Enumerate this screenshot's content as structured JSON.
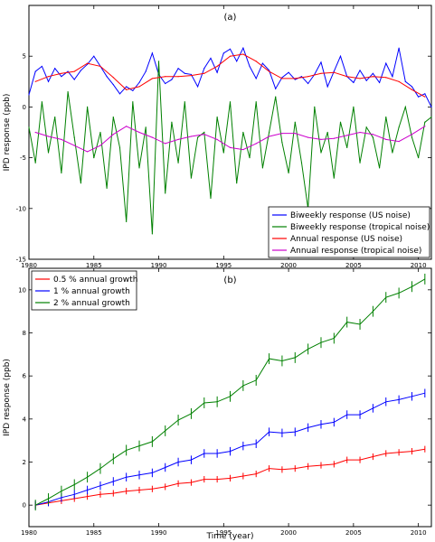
{
  "chart_data": [
    {
      "type": "line",
      "panel_label": "(a)",
      "xlabel": "",
      "ylabel": "IPD response (ppb)",
      "xlim": [
        1980,
        2011
      ],
      "ylim": [
        -15,
        10
      ],
      "x_ticks": [
        1980,
        1985,
        1990,
        1995,
        2000,
        2005,
        2010
      ],
      "y_ticks": [
        -15,
        -10,
        -5,
        0,
        5
      ],
      "grid": false,
      "legend_position": "bottom-right",
      "series": [
        {
          "name": "Biweekly response (US noise)",
          "color": "#0000ff",
          "x": [
            1980,
            1980.5,
            1981,
            1981.5,
            1982,
            1982.5,
            1983,
            1983.5,
            1984,
            1984.5,
            1985,
            1985.5,
            1986,
            1986.5,
            1987,
            1987.5,
            1988,
            1988.5,
            1989,
            1989.5,
            1990,
            1990.5,
            1991,
            1991.5,
            1992,
            1992.5,
            1993,
            1993.5,
            1994,
            1994.5,
            1995,
            1995.5,
            1996,
            1996.5,
            1997,
            1997.5,
            1998,
            1998.5,
            1999,
            1999.5,
            2000,
            2000.5,
            2001,
            2001.5,
            2002,
            2002.5,
            2003,
            2003.5,
            2004,
            2004.5,
            2005,
            2005.5,
            2006,
            2006.5,
            2007,
            2007.5,
            2008,
            2008.5,
            2009,
            2009.5,
            2010,
            2010.5,
            2011
          ],
          "y": [
            1.2,
            3.5,
            4.0,
            2.5,
            3.8,
            3.0,
            3.5,
            2.7,
            3.6,
            4.2,
            5.0,
            4.0,
            3.0,
            2.2,
            1.3,
            2.0,
            1.6,
            2.4,
            3.5,
            5.3,
            3.2,
            2.3,
            2.7,
            3.8,
            3.3,
            3.2,
            2.0,
            3.8,
            4.8,
            3.4,
            5.3,
            5.7,
            4.5,
            5.8,
            4.0,
            2.8,
            4.3,
            3.6,
            1.8,
            2.9,
            3.4,
            2.7,
            3.0,
            2.3,
            3.2,
            4.4,
            2.0,
            3.5,
            5.0,
            3.0,
            2.4,
            3.6,
            2.6,
            3.3,
            2.4,
            4.3,
            3.0,
            5.8,
            2.5,
            2.0,
            1.0,
            1.3,
            0.0
          ]
        },
        {
          "name": "Biweekly response (tropical noise)",
          "color": "#008000",
          "x": [
            1980,
            1980.5,
            1981,
            1981.5,
            1982,
            1982.5,
            1983,
            1983.5,
            1984,
            1984.5,
            1985,
            1985.5,
            1986,
            1986.5,
            1987,
            1987.5,
            1988,
            1988.5,
            1989,
            1989.5,
            1990,
            1990.5,
            1991,
            1991.5,
            1992,
            1992.5,
            1993,
            1993.5,
            1994,
            1994.5,
            1995,
            1995.5,
            1996,
            1996.5,
            1997,
            1997.5,
            1998,
            1998.5,
            1999,
            1999.5,
            2000,
            2000.5,
            2001,
            2001.5,
            2002,
            2002.5,
            2003,
            2003.5,
            2004,
            2004.5,
            2005,
            2005.5,
            2006,
            2006.5,
            2007,
            2007.5,
            2008,
            2008.5,
            2009,
            2009.5,
            2010,
            2010.5,
            2011
          ],
          "y": [
            -2.0,
            -5.5,
            0.5,
            -4.5,
            -1.0,
            -6.5,
            1.5,
            -3.0,
            -7.5,
            0.0,
            -5.0,
            -2.5,
            -8.0,
            -1.0,
            -4.0,
            -11.3,
            0.5,
            -6.0,
            -2.0,
            -12.5,
            4.5,
            -8.5,
            -1.5,
            -5.5,
            0.5,
            -7.0,
            -3.0,
            -2.5,
            -9.0,
            -1.0,
            -4.5,
            0.5,
            -7.5,
            -2.5,
            -5.0,
            0.5,
            -6.0,
            -2.5,
            1.0,
            -3.5,
            -6.5,
            -1.5,
            -5.5,
            -10.0,
            0.0,
            -4.5,
            -2.5,
            -7.0,
            -1.5,
            -4.0,
            0.0,
            -5.5,
            -2.0,
            -3.0,
            -6.0,
            -1.0,
            -4.5,
            -2.0,
            0.0,
            -3.0,
            -5.0,
            -1.5,
            -1.0
          ]
        },
        {
          "name": "Annual response (US noise)",
          "color": "#ff0000",
          "x": [
            1980.5,
            1981.5,
            1982.5,
            1983.5,
            1984.5,
            1985.5,
            1986.5,
            1987.5,
            1988.5,
            1989.5,
            1990.5,
            1991.5,
            1992.5,
            1993.5,
            1994.5,
            1995.5,
            1996.5,
            1997.5,
            1998.5,
            1999.5,
            2000.5,
            2001.5,
            2002.5,
            2003.5,
            2004.5,
            2005.5,
            2006.5,
            2007.5,
            2008.5,
            2009.5,
            2010.5
          ],
          "y": [
            2.5,
            3.0,
            3.3,
            3.5,
            4.3,
            4.0,
            2.9,
            1.7,
            2.0,
            2.8,
            3.0,
            3.0,
            3.1,
            3.3,
            4.0,
            5.0,
            5.2,
            4.5,
            3.5,
            2.8,
            2.8,
            3.0,
            3.3,
            3.4,
            3.0,
            2.8,
            3.0,
            2.9,
            2.5,
            1.7,
            1.0
          ]
        },
        {
          "name": "Annual response (tropical noise)",
          "color": "#cc00cc",
          "x": [
            1980.5,
            1981.5,
            1982.5,
            1983.5,
            1984.5,
            1985.5,
            1986.5,
            1987.5,
            1988.5,
            1989.5,
            1990.5,
            1991.5,
            1992.5,
            1993.5,
            1994.5,
            1995.5,
            1996.5,
            1997.5,
            1998.5,
            1999.5,
            2000.5,
            2001.5,
            2002.5,
            2003.5,
            2004.5,
            2005.5,
            2006.5,
            2007.5,
            2008.5,
            2009.5,
            2010.5
          ],
          "y": [
            -2.5,
            -2.9,
            -3.2,
            -3.8,
            -4.4,
            -3.8,
            -2.7,
            -1.9,
            -2.5,
            -3.0,
            -3.6,
            -3.2,
            -2.9,
            -2.7,
            -3.2,
            -4.0,
            -4.2,
            -3.6,
            -2.9,
            -2.6,
            -2.6,
            -3.0,
            -3.2,
            -3.1,
            -2.8,
            -2.5,
            -2.7,
            -3.2,
            -3.4,
            -2.7,
            -1.9
          ]
        }
      ]
    },
    {
      "type": "line",
      "panel_label": "(b)",
      "xlabel": "Time (year)",
      "ylabel": "IPD response (ppb)",
      "xlim": [
        1980,
        2011
      ],
      "ylim": [
        -1,
        11
      ],
      "x_ticks": [
        1980,
        1985,
        1990,
        1995,
        2000,
        2005,
        2010
      ],
      "y_ticks": [
        0,
        2,
        4,
        6,
        8,
        10
      ],
      "grid": false,
      "legend_position": "top-left",
      "series": [
        {
          "name": "0.5 % annual growth",
          "color": "#ff0000",
          "x": [
            1980.5,
            1981.5,
            1982.5,
            1983.5,
            1984.5,
            1985.5,
            1986.5,
            1987.5,
            1988.5,
            1989.5,
            1990.5,
            1991.5,
            1992.5,
            1993.5,
            1994.5,
            1995.5,
            1996.5,
            1997.5,
            1998.5,
            1999.5,
            2000.5,
            2001.5,
            2002.5,
            2003.5,
            2004.5,
            2005.5,
            2006.5,
            2007.5,
            2008.5,
            2009.5,
            2010.5
          ],
          "y": [
            0.0,
            0.1,
            0.2,
            0.3,
            0.4,
            0.5,
            0.55,
            0.65,
            0.7,
            0.75,
            0.85,
            1.0,
            1.05,
            1.2,
            1.2,
            1.25,
            1.35,
            1.45,
            1.7,
            1.65,
            1.7,
            1.8,
            1.85,
            1.9,
            2.1,
            2.1,
            2.25,
            2.4,
            2.45,
            2.5,
            2.6
          ],
          "error": 0.15
        },
        {
          "name": "1 % annual growth",
          "color": "#0000ff",
          "x": [
            1980.5,
            1981.5,
            1982.5,
            1983.5,
            1984.5,
            1985.5,
            1986.5,
            1987.5,
            1988.5,
            1989.5,
            1990.5,
            1991.5,
            1992.5,
            1993.5,
            1994.5,
            1995.5,
            1996.5,
            1997.5,
            1998.5,
            1999.5,
            2000.5,
            2001.5,
            2002.5,
            2003.5,
            2004.5,
            2005.5,
            2006.5,
            2007.5,
            2008.5,
            2009.5,
            2010.5
          ],
          "y": [
            0.0,
            0.15,
            0.35,
            0.5,
            0.7,
            0.9,
            1.1,
            1.3,
            1.4,
            1.5,
            1.75,
            2.0,
            2.1,
            2.4,
            2.4,
            2.5,
            2.75,
            2.85,
            3.4,
            3.35,
            3.4,
            3.6,
            3.75,
            3.85,
            4.2,
            4.2,
            4.5,
            4.8,
            4.9,
            5.05,
            5.2
          ],
          "error": 0.2
        },
        {
          "name": "2 % annual growth",
          "color": "#008000",
          "x": [
            1980.5,
            1981.5,
            1982.5,
            1983.5,
            1984.5,
            1985.5,
            1986.5,
            1987.5,
            1988.5,
            1989.5,
            1990.5,
            1991.5,
            1992.5,
            1993.5,
            1994.5,
            1995.5,
            1996.5,
            1997.5,
            1998.5,
            1999.5,
            2000.5,
            2001.5,
            2002.5,
            2003.5,
            2004.5,
            2005.5,
            2006.5,
            2007.5,
            2008.5,
            2009.5,
            2010.5
          ],
          "y": [
            0.0,
            0.3,
            0.65,
            0.95,
            1.3,
            1.7,
            2.15,
            2.55,
            2.75,
            2.95,
            3.45,
            3.95,
            4.25,
            4.75,
            4.8,
            5.05,
            5.55,
            5.8,
            6.8,
            6.7,
            6.85,
            7.25,
            7.55,
            7.75,
            8.5,
            8.4,
            9.0,
            9.65,
            9.85,
            10.15,
            10.5
          ],
          "error": 0.25
        }
      ]
    }
  ]
}
